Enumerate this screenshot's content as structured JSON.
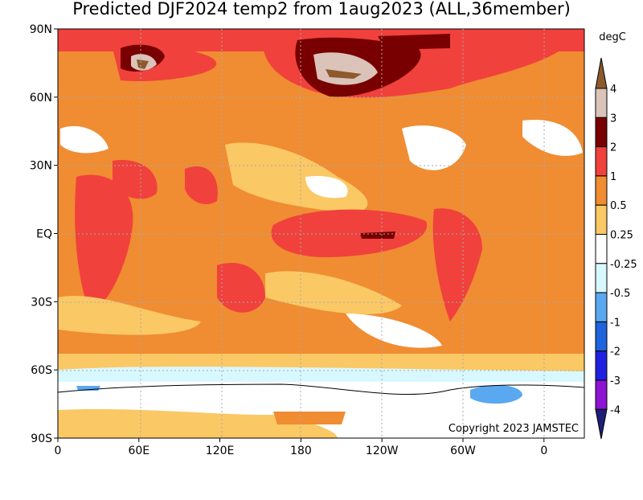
{
  "title": "Predicted DJF2024 temp2 from 1aug2023 (ALL,36member)",
  "map": {
    "lat_labels": [
      "90N",
      "60N",
      "30N",
      "EQ",
      "30S",
      "60S",
      "90S"
    ],
    "lon_labels": [
      "0",
      "60E",
      "120E",
      "180",
      "120W",
      "60W",
      "0"
    ],
    "copyright": "Copyright 2023 JAMSTEC"
  },
  "colorbar": {
    "unit": "degC",
    "labels": [
      "4",
      "3",
      "2",
      "1",
      "0.5",
      "0.25",
      "-0.25",
      "-0.5",
      "-1",
      "-2",
      "-3",
      "-4"
    ],
    "colors": [
      "#8c5a2d",
      "#dcc3b9",
      "#780000",
      "#f0413c",
      "#f08c32",
      "#fac864",
      "#ffffff",
      "#d8f8ff",
      "#5aa8f0",
      "#1e64dc",
      "#2020e0",
      "#8c14d2",
      "#1e1e78"
    ]
  }
}
